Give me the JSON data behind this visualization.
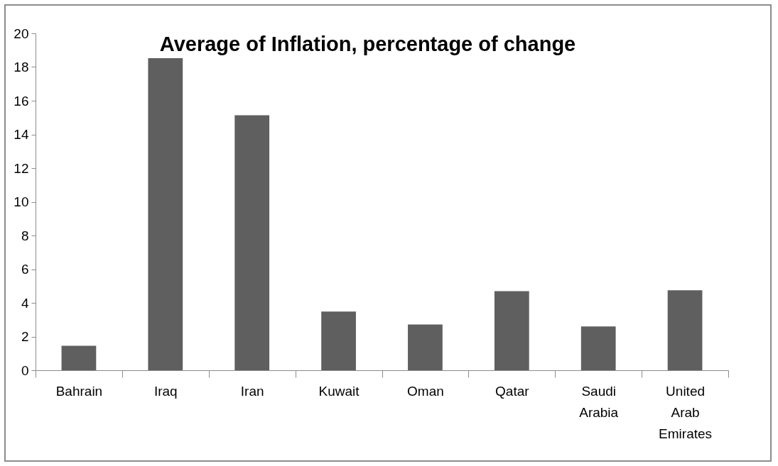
{
  "chart_data": {
    "type": "bar",
    "title": "Average of Inflation, percentage of change",
    "categories": [
      "Bahrain",
      "Iraq",
      "Iran",
      "Kuwait",
      "Oman",
      "Qatar",
      "Saudi Arabia",
      "United Arab Emirates"
    ],
    "values": [
      1.45,
      18.53,
      15.14,
      3.48,
      2.72,
      4.7,
      2.6,
      4.75
    ],
    "color": "#5f5f5f",
    "ylim": [
      0,
      20
    ],
    "yticks": [
      0,
      2,
      4,
      6,
      8,
      10,
      12,
      14,
      16,
      18,
      20
    ],
    "grid": false
  }
}
